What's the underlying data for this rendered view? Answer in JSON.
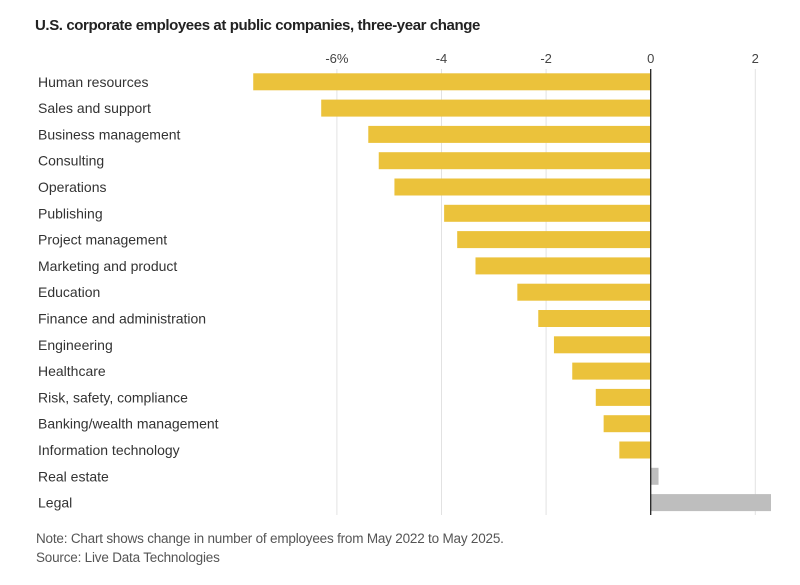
{
  "chart_data": {
    "type": "bar",
    "orientation": "horizontal",
    "title": "U.S. corporate employees at public companies, three-year change",
    "xlabel": "",
    "ylabel": "",
    "xlim": [
      -7.7,
      2.3
    ],
    "x_ticks": [
      -6,
      -4,
      -2,
      0,
      2
    ],
    "x_tick_labels": [
      "-6%",
      "-4",
      "-2",
      "0",
      "2"
    ],
    "grid": true,
    "categories": [
      "Human resources",
      "Sales and support",
      "Business management",
      "Consulting",
      "Operations",
      "Publishing",
      "Project management",
      "Marketing and product",
      "Education",
      "Finance and administration",
      "Engineering",
      "Healthcare",
      "Risk, safety, compliance",
      "Banking/wealth management",
      "Information technology",
      "Real estate",
      "Legal"
    ],
    "values": [
      -7.6,
      -6.3,
      -5.4,
      -5.2,
      -4.9,
      -3.95,
      -3.7,
      -3.35,
      -2.55,
      -2.15,
      -1.85,
      -1.5,
      -1.05,
      -0.9,
      -0.6,
      0.15,
      2.3
    ],
    "colors": {
      "negative": "#EBC23B",
      "positive": "#BEBEBE",
      "zero_line": "#222222",
      "gridline": "#E2E2E2"
    },
    "note": "Note: Chart shows change in number of employees from May 2022 to May 2025.",
    "source": "Source: Live Data Technologies"
  }
}
